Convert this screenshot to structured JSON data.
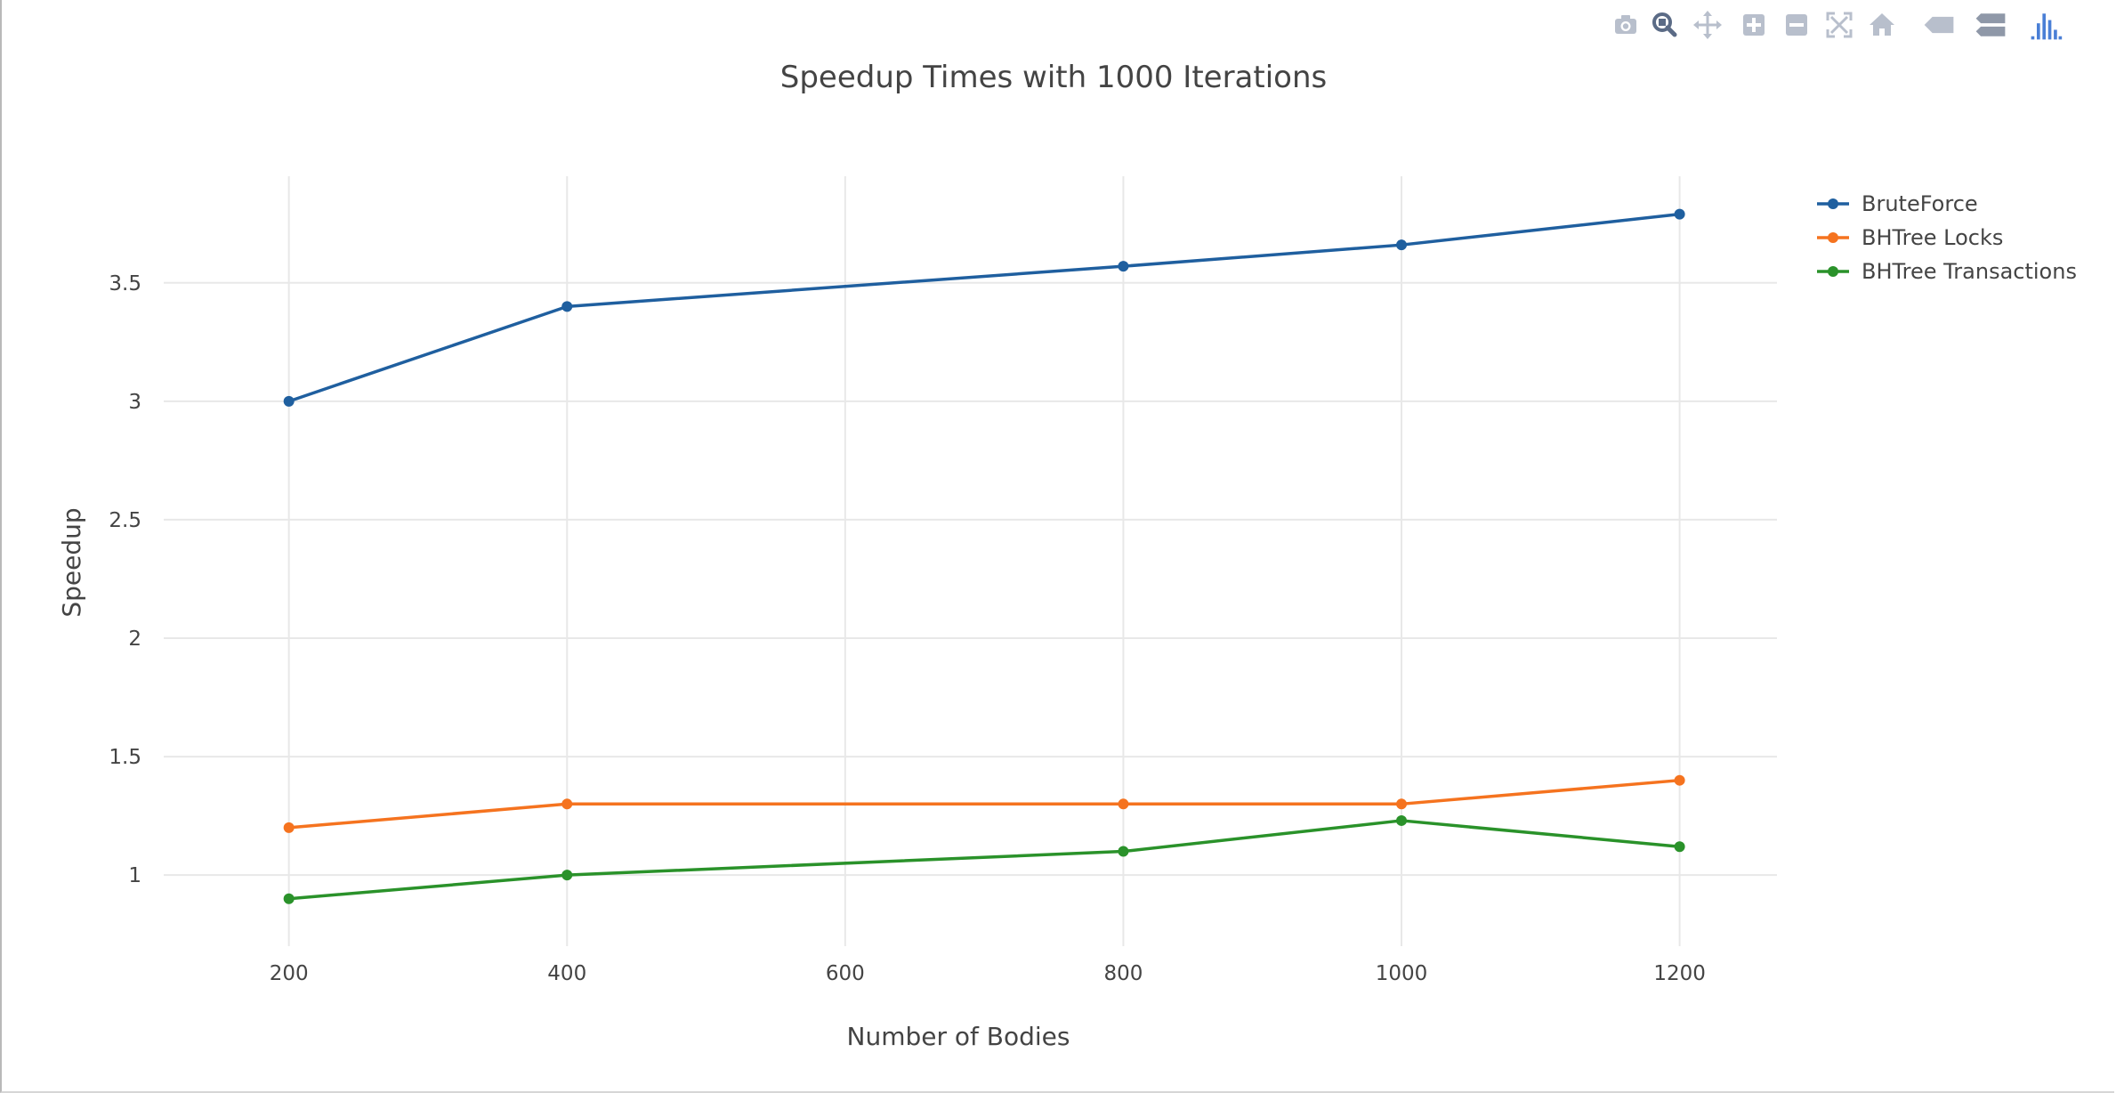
{
  "chart_data": {
    "type": "line",
    "title": "Speedup Times with 1000 Iterations",
    "xlabel": "Number of Bodies",
    "ylabel": "Speedup",
    "x_ticks": [
      "200",
      "400",
      "600",
      "800",
      "1000",
      "1200"
    ],
    "y_ticks": [
      "1",
      "1.5",
      "2",
      "2.5",
      "3",
      "3.5"
    ],
    "xlim": [
      110,
      1270
    ],
    "ylim": [
      0.7,
      3.95
    ],
    "grid": true,
    "legend_position": "top-right",
    "series": [
      {
        "name": "BruteForce",
        "color": "#1f5f9f",
        "x": [
          200,
          400,
          800,
          1000,
          1200
        ],
        "y": [
          3.0,
          3.4,
          3.57,
          3.66,
          3.79
        ]
      },
      {
        "name": "BHTree Locks",
        "color": "#f5731f",
        "x": [
          200,
          400,
          800,
          1000,
          1200
        ],
        "y": [
          1.2,
          1.3,
          1.3,
          1.3,
          1.4
        ]
      },
      {
        "name": "BHTree Transactions",
        "color": "#2a922a",
        "x": [
          200,
          400,
          800,
          1000,
          1200
        ],
        "y": [
          0.9,
          1.0,
          1.1,
          1.23,
          1.12
        ]
      }
    ]
  },
  "modebar": {
    "color": "#b8bfcc",
    "active_color": "#4a7fd6",
    "icons": [
      "camera-icon",
      "zoom-icon",
      "pan-icon",
      "zoom-in-icon",
      "zoom-out-icon",
      "autoscale-icon",
      "home-icon",
      "closest-hover-icon",
      "compare-hover-icon",
      "plotly-logo-icon"
    ]
  }
}
